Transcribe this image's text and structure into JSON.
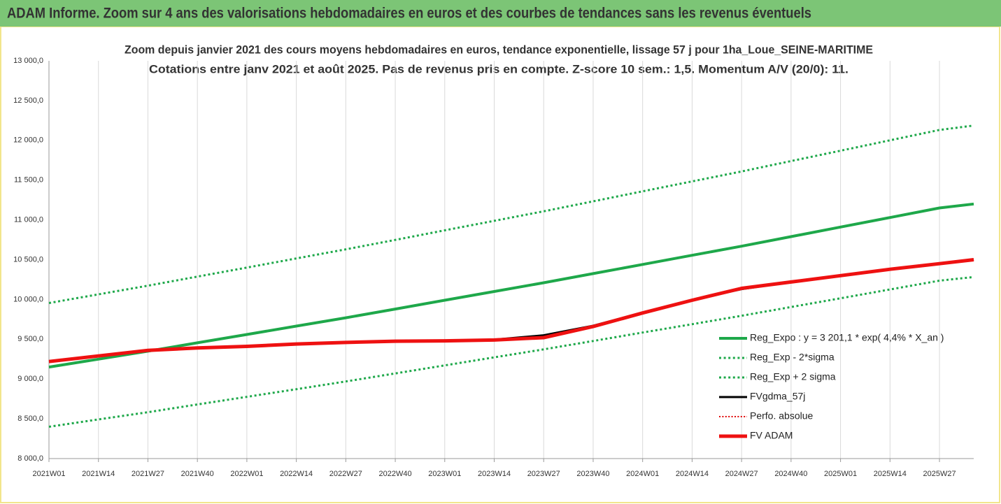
{
  "header": {
    "title": "ADAM Informe. Zoom sur 4 ans des valorisations hebdomadaires en euros et des courbes de tendances sans les revenus éventuels"
  },
  "chart_data": {
    "type": "line",
    "title": "Zoom depuis janvier 2021 des cours moyens hebdomadaires en euros, tendance exponentielle, lissage 57 j pour 1ha_Loue_SEINE-MARITIME",
    "subtitle": "Cotations entre janv 2021 et août 2025.  Pas de revenus pris en compte. Z-score 10 sem.: 1,5. Momentum A/V (20/0): 11.",
    "x": [
      0,
      13,
      26,
      39,
      52,
      65,
      78,
      91,
      104,
      117,
      130,
      143,
      156,
      169,
      182,
      195,
      208,
      221,
      234,
      243
    ],
    "xlim": [
      0,
      243
    ],
    "xticks": [
      {
        "value": 0,
        "label": "2021W01"
      },
      {
        "value": 13,
        "label": "2021W14"
      },
      {
        "value": 26,
        "label": "2021W27"
      },
      {
        "value": 39,
        "label": "2021W40"
      },
      {
        "value": 52,
        "label": "2022W01"
      },
      {
        "value": 65,
        "label": "2022W14"
      },
      {
        "value": 78,
        "label": "2022W27"
      },
      {
        "value": 91,
        "label": "2022W40"
      },
      {
        "value": 104,
        "label": "2023W01"
      },
      {
        "value": 117,
        "label": "2023W14"
      },
      {
        "value": 130,
        "label": "2023W27"
      },
      {
        "value": 143,
        "label": "2023W40"
      },
      {
        "value": 156,
        "label": "2024W01"
      },
      {
        "value": 169,
        "label": "2024W14"
      },
      {
        "value": 182,
        "label": "2024W27"
      },
      {
        "value": 195,
        "label": "2024W40"
      },
      {
        "value": 208,
        "label": "2025W01"
      },
      {
        "value": 221,
        "label": "2025W14"
      },
      {
        "value": 234,
        "label": "2025W27"
      }
    ],
    "ylim": [
      8000,
      13000
    ],
    "yticks": [
      {
        "value": 8000,
        "label": "8 000,0"
      },
      {
        "value": 8500,
        "label": "8 500,0"
      },
      {
        "value": 9000,
        "label": "9 000,0"
      },
      {
        "value": 9500,
        "label": "9 500,0"
      },
      {
        "value": 10000,
        "label": "10 000,0"
      },
      {
        "value": 10500,
        "label": "10 500,0"
      },
      {
        "value": 11000,
        "label": "11 000,0"
      },
      {
        "value": 11500,
        "label": "11 500,0"
      },
      {
        "value": 12000,
        "label": "12 000,0"
      },
      {
        "value": 12500,
        "label": "12 500,0"
      },
      {
        "value": 13000,
        "label": "13 000,0"
      }
    ],
    "grid": "x",
    "legend": "bottom-right",
    "series": [
      {
        "name": "Reg_Expo : y = 3 201,1 * exp( 4,4% *  X_an )",
        "color": "#1ea84a",
        "line_style": "solid",
        "line_width": 4,
        "values": [
          9150,
          9250,
          9350,
          9455,
          9560,
          9665,
          9770,
          9880,
          9990,
          10100,
          10210,
          10325,
          10440,
          10555,
          10670,
          10790,
          10910,
          11030,
          11150,
          11200
        ]
      },
      {
        "name": "Reg_Exp - 2*sigma",
        "color": "#1ea84a",
        "line_style": "dotted",
        "line_width": 3,
        "values": [
          8400,
          8492,
          8583,
          8680,
          8776,
          8872,
          8969,
          9070,
          9171,
          9272,
          9373,
          9478,
          9584,
          9689,
          9795,
          9905,
          10015,
          10126,
          10236,
          10282
        ]
      },
      {
        "name": "Reg_Exp + 2 sigma",
        "color": "#1ea84a",
        "line_style": "dotted",
        "line_width": 3,
        "values": [
          9955,
          10064,
          10173,
          10287,
          10401,
          10516,
          10630,
          10749,
          10869,
          10989,
          11108,
          11234,
          11359,
          11484,
          11609,
          11740,
          11870,
          12001,
          12131,
          12186
        ]
      },
      {
        "name": "FVgdma_57j",
        "color": "#000000",
        "line_style": "solid",
        "line_width": 3,
        "values": [
          9220,
          9290,
          9360,
          9390,
          9410,
          9440,
          9460,
          9475,
          9480,
          9495,
          9550,
          9670,
          9835,
          9995,
          10130,
          10220,
          10300,
          10380,
          10450,
          10500
        ]
      },
      {
        "name": "Perfo. absolue",
        "color": "#e00000",
        "line_style": "dotted",
        "line_width": 2,
        "values": [
          9220,
          9290,
          9360,
          9390,
          9410,
          9440,
          9460,
          9475,
          9480,
          9490,
          9520,
          9660,
          9830,
          9990,
          10140,
          10220,
          10300,
          10380,
          10450,
          10500
        ]
      },
      {
        "name": "FV ADAM",
        "color": "#ee1111",
        "line_style": "solid",
        "line_width": 5,
        "values": [
          9220,
          9290,
          9360,
          9390,
          9410,
          9440,
          9460,
          9475,
          9480,
          9490,
          9520,
          9660,
          9830,
          9990,
          10140,
          10220,
          10300,
          10380,
          10450,
          10500
        ]
      }
    ]
  }
}
